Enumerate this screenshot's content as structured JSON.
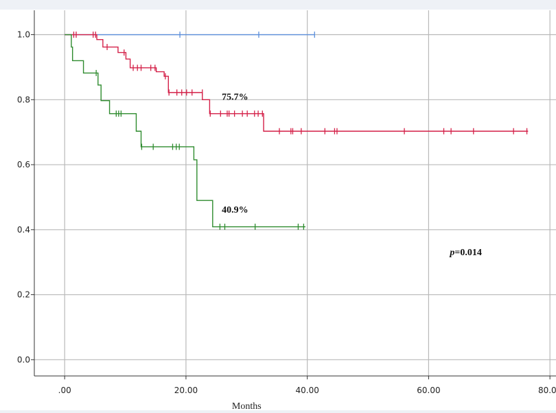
{
  "chart_data": {
    "type": "line",
    "subtype": "kaplan-meier",
    "title": "",
    "xlabel": "Months",
    "ylabel": "",
    "xlim": [
      -5,
      81
    ],
    "ylim": [
      -0.05,
      1.075
    ],
    "x_ticks": [
      0,
      20,
      40,
      60,
      80
    ],
    "x_tick_labels": [
      ".00",
      "20.00",
      "40.00",
      "60.00",
      "80.00"
    ],
    "y_ticks": [
      0.0,
      0.2,
      0.4,
      0.6,
      0.8,
      1.0
    ],
    "y_tick_labels": [
      "0.0",
      "0.2",
      "0.4",
      "0.6",
      "0.8",
      "1.0"
    ],
    "grid": true,
    "series": [
      {
        "color": "#5b8fdc",
        "steps": [
          [
            0,
            1.0
          ],
          [
            41.2,
            1.0
          ]
        ],
        "censors": [
          [
            19,
            1.0
          ],
          [
            32,
            1.0
          ],
          [
            41.2,
            1.0
          ]
        ]
      },
      {
        "color": "#d42048",
        "steps": [
          [
            0,
            1.0
          ],
          [
            5.3,
            0.985
          ],
          [
            6.3,
            0.962
          ],
          [
            8.8,
            0.945
          ],
          [
            10.1,
            0.925
          ],
          [
            10.8,
            0.898
          ],
          [
            15.1,
            0.886
          ],
          [
            16.4,
            0.872
          ],
          [
            17.1,
            0.822
          ],
          [
            22.7,
            0.8
          ],
          [
            23.9,
            0.757
          ],
          [
            32.8,
            0.703
          ],
          [
            76.4,
            0.703
          ]
        ],
        "censors": [
          [
            1.5,
            1.0
          ],
          [
            1.9,
            1.0
          ],
          [
            4.7,
            1.0
          ],
          [
            5.1,
            1.0
          ],
          [
            7.0,
            0.962
          ],
          [
            9.8,
            0.945
          ],
          [
            11.3,
            0.898
          ],
          [
            12.0,
            0.898
          ],
          [
            12.6,
            0.898
          ],
          [
            14.2,
            0.898
          ],
          [
            14.9,
            0.898
          ],
          [
            16.6,
            0.872
          ],
          [
            17.2,
            0.822
          ],
          [
            18.5,
            0.822
          ],
          [
            19.3,
            0.822
          ],
          [
            20.1,
            0.822
          ],
          [
            21.0,
            0.822
          ],
          [
            22.7,
            0.822
          ],
          [
            24.0,
            0.757
          ],
          [
            25.7,
            0.757
          ],
          [
            26.8,
            0.757
          ],
          [
            27.1,
            0.757
          ],
          [
            28.0,
            0.757
          ],
          [
            29.3,
            0.757
          ],
          [
            30.1,
            0.757
          ],
          [
            31.3,
            0.757
          ],
          [
            31.9,
            0.757
          ],
          [
            32.6,
            0.757
          ],
          [
            35.4,
            0.703
          ],
          [
            37.3,
            0.703
          ],
          [
            37.6,
            0.703
          ],
          [
            39.0,
            0.703
          ],
          [
            42.9,
            0.703
          ],
          [
            44.5,
            0.703
          ],
          [
            44.9,
            0.703
          ],
          [
            56.0,
            0.703
          ],
          [
            62.5,
            0.703
          ],
          [
            63.7,
            0.703
          ],
          [
            67.4,
            0.703
          ],
          [
            74.0,
            0.703
          ],
          [
            76.2,
            0.703
          ]
        ]
      },
      {
        "color": "#2e8b2e",
        "steps": [
          [
            0,
            1.0
          ],
          [
            1.1,
            0.962
          ],
          [
            1.3,
            0.92
          ],
          [
            3.1,
            0.882
          ],
          [
            5.5,
            0.845
          ],
          [
            6.0,
            0.797
          ],
          [
            7.4,
            0.757
          ],
          [
            11.8,
            0.703
          ],
          [
            12.6,
            0.655
          ],
          [
            21.3,
            0.615
          ],
          [
            21.8,
            0.49
          ],
          [
            24.4,
            0.409
          ],
          [
            39.7,
            0.409
          ]
        ],
        "censors": [
          [
            5.2,
            0.882
          ],
          [
            8.5,
            0.757
          ],
          [
            8.9,
            0.757
          ],
          [
            9.3,
            0.757
          ],
          [
            12.7,
            0.655
          ],
          [
            14.6,
            0.655
          ],
          [
            17.8,
            0.655
          ],
          [
            18.4,
            0.655
          ],
          [
            18.9,
            0.655
          ],
          [
            25.6,
            0.409
          ],
          [
            26.4,
            0.409
          ],
          [
            31.4,
            0.409
          ],
          [
            38.5,
            0.409
          ],
          [
            39.4,
            0.409
          ]
        ]
      }
    ],
    "annotations": [
      {
        "text": "75.7%",
        "x": 25.9,
        "y": 0.8
      },
      {
        "text": "40.9%",
        "x": 25.9,
        "y": 0.452
      },
      {
        "text": "=0.014",
        "prefix": "p",
        "x": 63.5,
        "y": 0.322
      }
    ]
  }
}
